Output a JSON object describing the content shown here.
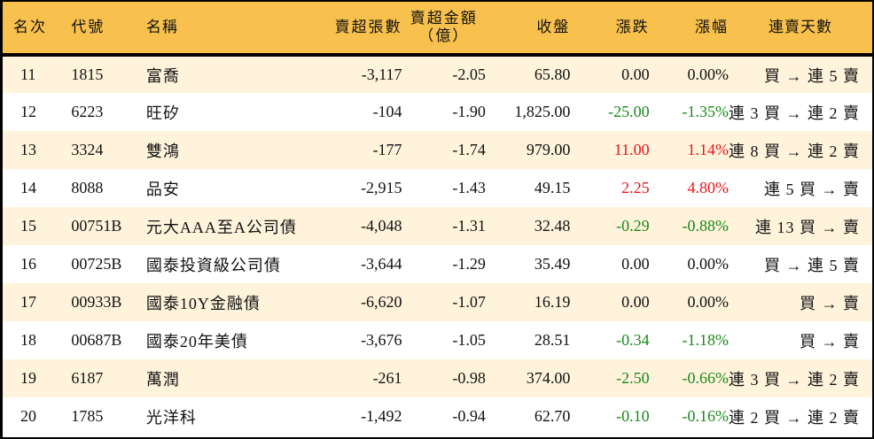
{
  "table": {
    "headers": {
      "rank": "名次",
      "code": "代號",
      "name": "名稱",
      "net_sell_volume": "賣超張數",
      "net_sell_amount_line1": "賣超金額",
      "net_sell_amount_line2": "（億）",
      "close": "收盤",
      "change": "漲跌",
      "change_pct": "漲幅",
      "streak": "連賣天數"
    },
    "colors": {
      "header_bg": "#F8C04C",
      "row_odd_bg": "#FFF3DC",
      "row_even_bg": "#FFFFFF",
      "up": "#E8161B",
      "down": "#198A1A"
    },
    "rows": [
      {
        "rank": "11",
        "code": "1815",
        "name": "富喬",
        "volume": "-3,117",
        "amount": "-2.05",
        "close": "65.80",
        "change": "0.00",
        "pct": "0.00%",
        "trend": "flat",
        "streak": "買 → 連 5 賣"
      },
      {
        "rank": "12",
        "code": "6223",
        "name": "旺矽",
        "volume": "-104",
        "amount": "-1.90",
        "close": "1,825.00",
        "change": "-25.00",
        "pct": "-1.35%",
        "trend": "down",
        "streak": "連 3 買 → 連 2 賣"
      },
      {
        "rank": "13",
        "code": "3324",
        "name": "雙鴻",
        "volume": "-177",
        "amount": "-1.74",
        "close": "979.00",
        "change": "11.00",
        "pct": "1.14%",
        "trend": "up",
        "streak": "連 8 買 → 連 2 賣"
      },
      {
        "rank": "14",
        "code": "8088",
        "name": "品安",
        "volume": "-2,915",
        "amount": "-1.43",
        "close": "49.15",
        "change": "2.25",
        "pct": "4.80%",
        "trend": "up",
        "streak": "連 5 買 → 賣"
      },
      {
        "rank": "15",
        "code": "00751B",
        "name": "元大AAA至A公司債",
        "volume": "-4,048",
        "amount": "-1.31",
        "close": "32.48",
        "change": "-0.29",
        "pct": "-0.88%",
        "trend": "down",
        "streak": "連 13 買 → 賣"
      },
      {
        "rank": "16",
        "code": "00725B",
        "name": "國泰投資級公司債",
        "volume": "-3,644",
        "amount": "-1.29",
        "close": "35.49",
        "change": "0.00",
        "pct": "0.00%",
        "trend": "flat",
        "streak": "買 → 連 5 賣"
      },
      {
        "rank": "17",
        "code": "00933B",
        "name": "國泰10Y金融債",
        "volume": "-6,620",
        "amount": "-1.07",
        "close": "16.19",
        "change": "0.00",
        "pct": "0.00%",
        "trend": "flat",
        "streak": "買 → 賣"
      },
      {
        "rank": "18",
        "code": "00687B",
        "name": "國泰20年美債",
        "volume": "-3,676",
        "amount": "-1.05",
        "close": "28.51",
        "change": "-0.34",
        "pct": "-1.18%",
        "trend": "down",
        "streak": "買 → 賣"
      },
      {
        "rank": "19",
        "code": "6187",
        "name": "萬潤",
        "volume": "-261",
        "amount": "-0.98",
        "close": "374.00",
        "change": "-2.50",
        "pct": "-0.66%",
        "trend": "down",
        "streak": "連 3 買 → 連 2 賣"
      },
      {
        "rank": "20",
        "code": "1785",
        "name": "光洋科",
        "volume": "-1,492",
        "amount": "-0.94",
        "close": "62.70",
        "change": "-0.10",
        "pct": "-0.16%",
        "trend": "down",
        "streak": "連 2 買 → 連 2 賣"
      }
    ]
  }
}
